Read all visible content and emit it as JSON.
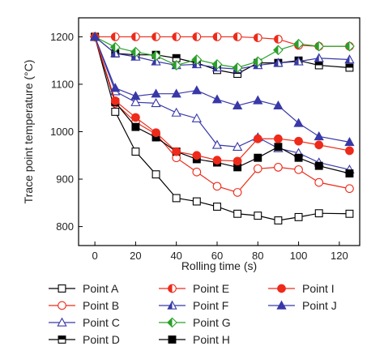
{
  "chart_data": {
    "type": "line",
    "title": "",
    "xlabel": "Rolling time (s)",
    "ylabel": "Trace point temperature (°C)",
    "xlim": [
      -8,
      130
    ],
    "ylim": [
      760,
      1240
    ],
    "xticks": [
      0,
      20,
      40,
      60,
      80,
      100,
      120
    ],
    "yticks": [
      800,
      900,
      1000,
      1100,
      1200
    ],
    "grid": false,
    "legend_position": "bottom",
    "x": [
      0,
      10,
      20,
      30,
      40,
      50,
      60,
      70,
      80,
      90,
      100,
      110,
      125
    ],
    "series": [
      {
        "name": "Point A",
        "marker": "square-open",
        "color": "#000000",
        "values": [
          1200,
          1042,
          958,
          910,
          860,
          853,
          842,
          827,
          823,
          813,
          820,
          828,
          827
        ]
      },
      {
        "name": "Point B",
        "marker": "circle-open",
        "color": "#ee2a1a",
        "values": [
          1200,
          1060,
          1020,
          995,
          945,
          915,
          885,
          872,
          922,
          925,
          920,
          893,
          880
        ]
      },
      {
        "name": "Point C",
        "marker": "triangle-open",
        "color": "#3838a8",
        "values": [
          1200,
          1085,
          1062,
          1060,
          1040,
          1028,
          972,
          968,
          988,
          965,
          955,
          935,
          920
        ]
      },
      {
        "name": "Point D",
        "marker": "square-top",
        "color": "#000000",
        "values": [
          1200,
          1165,
          1162,
          1162,
          1155,
          1145,
          1130,
          1122,
          1145,
          1145,
          1150,
          1140,
          1135
        ]
      },
      {
        "name": "Point E",
        "marker": "circle-half",
        "color": "#ee2a1a",
        "values": [
          1200,
          1200,
          1200,
          1200,
          1200,
          1200,
          1200,
          1200,
          1198,
          1195,
          1182,
          1180,
          1180
        ]
      },
      {
        "name": "Point F",
        "marker": "triangle-half",
        "color": "#3838a8",
        "values": [
          1200,
          1165,
          1158,
          1148,
          1140,
          1142,
          1135,
          1132,
          1140,
          1145,
          1148,
          1155,
          1152
        ]
      },
      {
        "name": "Point G",
        "marker": "diamond-half",
        "color": "#2aa02a",
        "values": [
          1200,
          1178,
          1168,
          1160,
          1140,
          1152,
          1142,
          1135,
          1148,
          1172,
          1185,
          1180,
          1180
        ]
      },
      {
        "name": "Point H",
        "marker": "square-filled",
        "color": "#000000",
        "values": [
          1200,
          1062,
          1010,
          988,
          958,
          942,
          935,
          925,
          945,
          968,
          945,
          928,
          912
        ]
      },
      {
        "name": "Point I",
        "marker": "circle-filled",
        "color": "#ee2a1a",
        "values": [
          1200,
          1065,
          1030,
          998,
          958,
          950,
          940,
          938,
          985,
          985,
          980,
          972,
          960
        ]
      },
      {
        "name": "Point J",
        "marker": "triangle-filled",
        "color": "#3838a8",
        "values": [
          1200,
          1092,
          1075,
          1080,
          1080,
          1087,
          1068,
          1055,
          1066,
          1055,
          1018,
          990,
          978
        ]
      }
    ]
  }
}
